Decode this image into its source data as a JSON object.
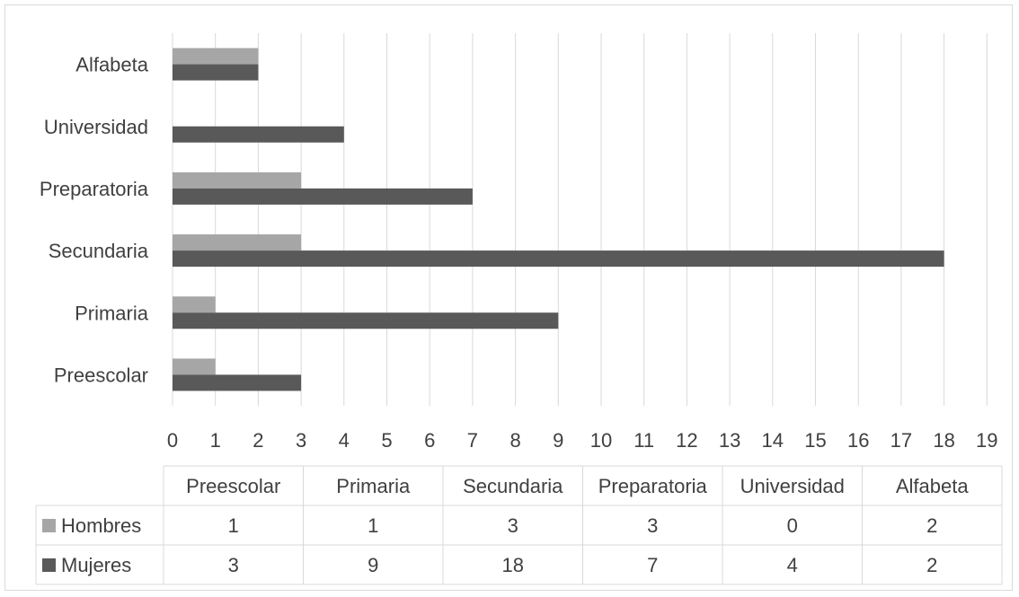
{
  "chart_data": {
    "type": "bar",
    "orientation": "horizontal",
    "categories": [
      "Preescolar",
      "Primaria",
      "Secundaria",
      "Preparatoria",
      "Universidad",
      "Alfabeta"
    ],
    "series": [
      {
        "name": "Hombres",
        "values": [
          1,
          1,
          3,
          3,
          0,
          2
        ],
        "color": "#a6a6a6"
      },
      {
        "name": "Mujeres",
        "values": [
          3,
          9,
          18,
          7,
          4,
          2
        ],
        "color": "#595959"
      }
    ],
    "xlim": [
      0,
      19
    ],
    "x_ticks": [
      "0",
      "1",
      "2",
      "3",
      "4",
      "5",
      "6",
      "7",
      "8",
      "9",
      "10",
      "11",
      "12",
      "13",
      "14",
      "15",
      "16",
      "17",
      "18",
      "19"
    ],
    "grid": "vertical",
    "data_table": true,
    "data_table_headers": [
      "Preescolar",
      "Primaria",
      "Secundaria",
      "Preparatoria",
      "Universidad",
      "Alfabeta"
    ],
    "colors": {
      "grid": "#d9d9d9",
      "text": "#404040",
      "border": "#d9d9d9"
    }
  }
}
